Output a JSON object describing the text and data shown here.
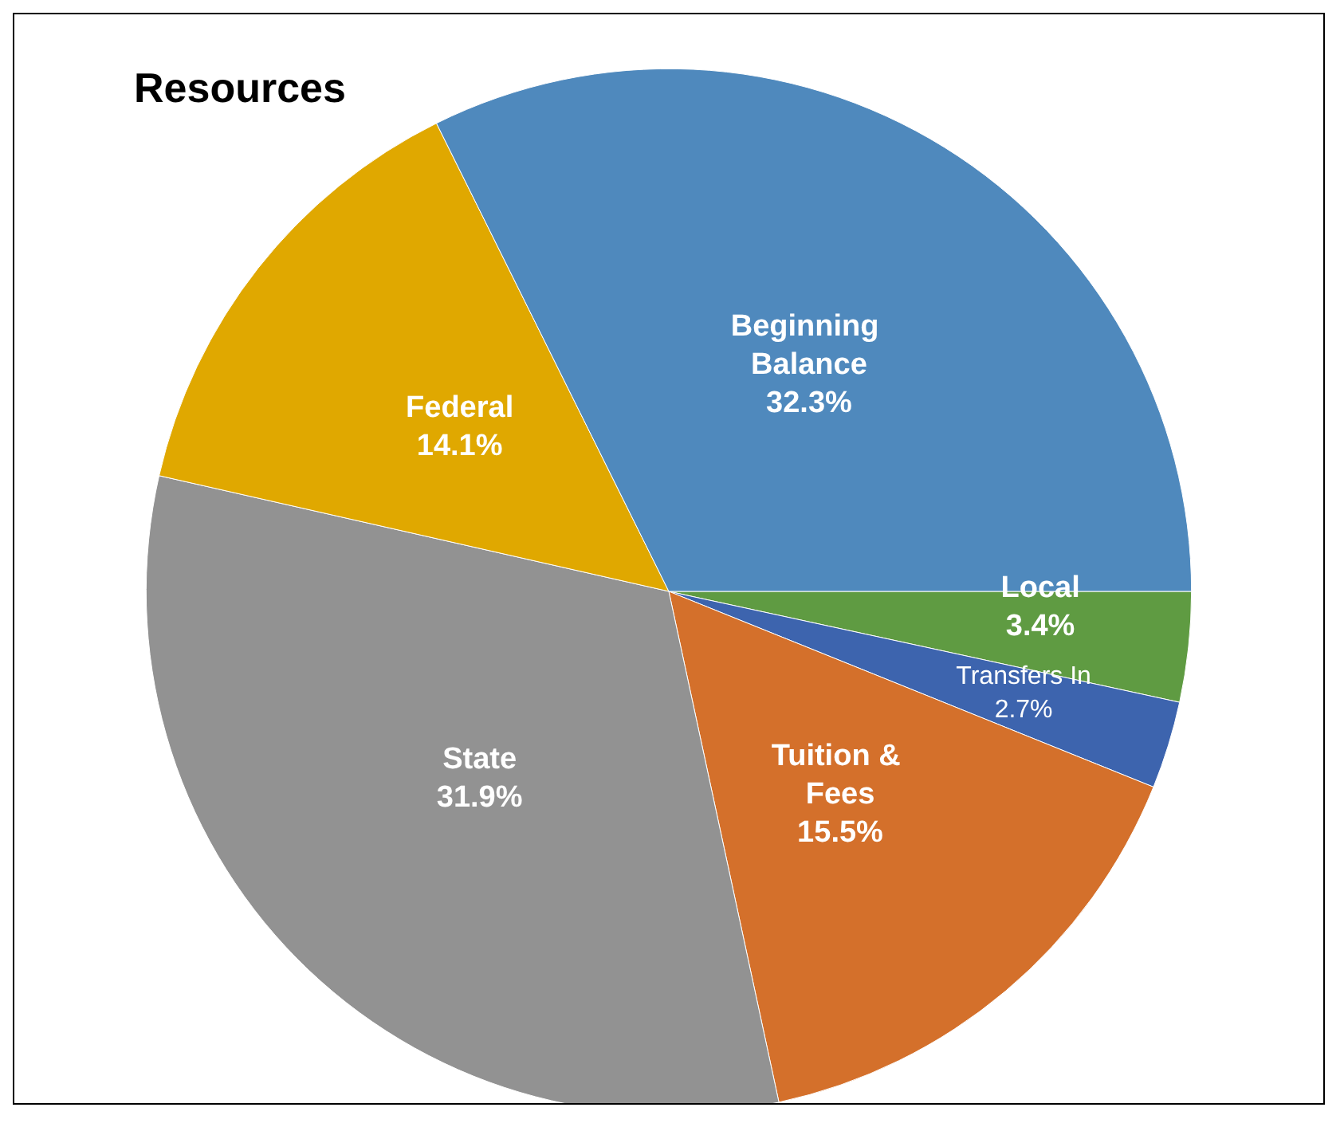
{
  "chart_data": {
    "type": "pie",
    "title": "Resources",
    "categories": [
      "Local",
      "Transfers In",
      "Tuition & Fees",
      "State",
      "Federal",
      "Beginning Balance"
    ],
    "values": [
      3.4,
      2.7,
      15.5,
      31.9,
      14.1,
      32.3
    ],
    "colors": [
      "#5f9b42",
      "#3d64ae",
      "#d4702b",
      "#929292",
      "#e0a800",
      "#4f89bd"
    ],
    "value_labels": [
      "3.4%",
      "2.7%",
      "15.5%",
      "31.9%",
      "14.1%",
      "32.3%"
    ],
    "legend": false
  }
}
